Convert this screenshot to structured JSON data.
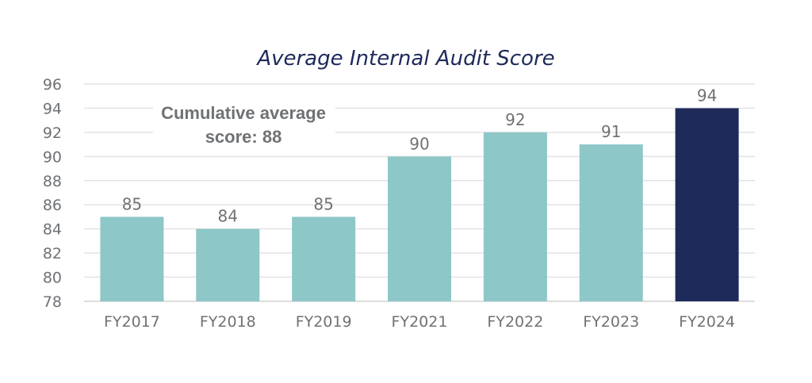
{
  "chart_data": {
    "type": "bar",
    "title": "Average Internal Audit Score",
    "categories": [
      "FY2017",
      "FY2018",
      "FY2019",
      "FY2021",
      "FY2022",
      "FY2023",
      "FY2024"
    ],
    "values": [
      85,
      84,
      85,
      90,
      92,
      91,
      94
    ],
    "data_labels": [
      "85",
      "84",
      "85",
      "90",
      "92",
      "91",
      "94"
    ],
    "ylim": [
      78,
      96
    ],
    "yticks": [
      78,
      80,
      82,
      84,
      86,
      88,
      90,
      92,
      94,
      96
    ],
    "grid": true,
    "colors": {
      "default": "#8dc7c8",
      "highlight": "#1e2a5a"
    },
    "highlight_category": "FY2024",
    "annotation": [
      "Cumulative average",
      "score: 88"
    ]
  }
}
